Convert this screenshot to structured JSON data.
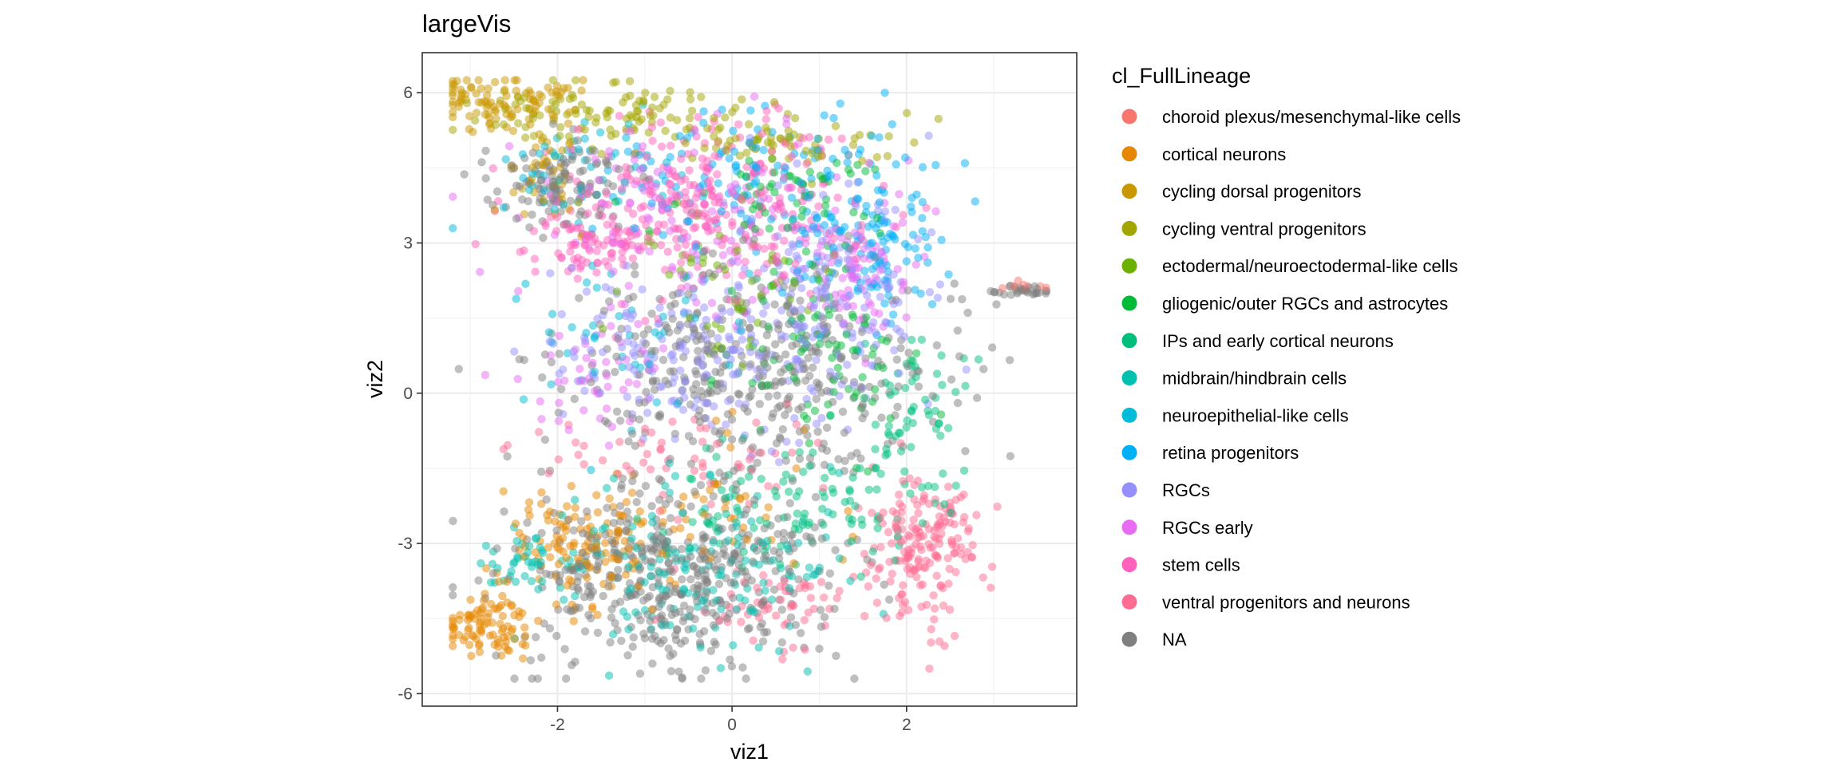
{
  "chart_data": {
    "type": "scatter",
    "title": "largeVis",
    "xlabel": "viz1",
    "ylabel": "viz2",
    "xlim": [
      -3.55,
      3.95
    ],
    "ylim": [
      -6.25,
      6.8
    ],
    "xticks": [
      -2,
      0,
      2
    ],
    "yticks": [
      -6,
      -3,
      0,
      3,
      6
    ],
    "grid": true,
    "point_alpha": 0.5,
    "legend": {
      "title": "cl_FullLineage",
      "placement": "right"
    },
    "series": [
      {
        "name": "choroid plexus/mesenchymal-like cells",
        "color": "#F8766D",
        "n": 8,
        "clusters": [
          {
            "cx": 3.35,
            "cy": 2.15,
            "sx": 0.12,
            "sy": 0.06,
            "w": 1
          }
        ]
      },
      {
        "name": "cortical neurons",
        "color": "#E58700",
        "n": 260,
        "clusters": [
          {
            "cx": -2.8,
            "cy": -4.6,
            "sx": 0.25,
            "sy": 0.35,
            "w": 0.35
          },
          {
            "cx": -1.7,
            "cy": -3.0,
            "sx": 0.45,
            "sy": 0.6,
            "w": 0.45
          },
          {
            "cx": -0.2,
            "cy": -2.2,
            "sx": 0.6,
            "sy": 0.7,
            "w": 0.2
          }
        ]
      },
      {
        "name": "cycling dorsal progenitors",
        "color": "#C99800",
        "n": 140,
        "clusters": [
          {
            "cx": -2.6,
            "cy": 5.8,
            "sx": 0.45,
            "sy": 0.25,
            "w": 0.7
          },
          {
            "cx": -2.2,
            "cy": 4.4,
            "sx": 0.3,
            "sy": 0.6,
            "w": 0.3
          }
        ]
      },
      {
        "name": "cycling ventral progenitors",
        "color": "#A3A500",
        "n": 170,
        "clusters": [
          {
            "cx": -1.5,
            "cy": 5.6,
            "sx": 0.7,
            "sy": 0.3,
            "w": 0.6
          },
          {
            "cx": 0.5,
            "cy": 5.0,
            "sx": 0.6,
            "sy": 0.3,
            "w": 0.4
          }
        ]
      },
      {
        "name": "ectodermal/neuroectodermal-like cells",
        "color": "#6BB100",
        "n": 60,
        "clusters": [
          {
            "cx": 0.0,
            "cy": 2.2,
            "sx": 0.6,
            "sy": 0.8,
            "w": 1
          }
        ]
      },
      {
        "name": "gliogenic/outer RGCs and astrocytes",
        "color": "#00BA38",
        "n": 150,
        "clusters": [
          {
            "cx": 1.0,
            "cy": 0.8,
            "sx": 0.6,
            "sy": 0.9,
            "w": 0.6
          },
          {
            "cx": 0.6,
            "cy": 4.0,
            "sx": 0.7,
            "sy": 0.6,
            "w": 0.4
          }
        ]
      },
      {
        "name": "IPs and early cortical neurons",
        "color": "#00BF7D",
        "n": 170,
        "clusters": [
          {
            "cx": 2.1,
            "cy": -0.6,
            "sx": 0.35,
            "sy": 1.0,
            "w": 0.4
          },
          {
            "cx": 0.6,
            "cy": -2.2,
            "sx": 0.8,
            "sy": 0.6,
            "w": 0.6
          }
        ]
      },
      {
        "name": "midbrain/hindbrain cells",
        "color": "#00C0AF",
        "n": 200,
        "clusters": [
          {
            "cx": -2.2,
            "cy": -3.4,
            "sx": 0.3,
            "sy": 0.3,
            "w": 0.2
          },
          {
            "cx": -0.4,
            "cy": -3.5,
            "sx": 0.9,
            "sy": 0.8,
            "w": 0.8
          }
        ]
      },
      {
        "name": "neuroepithelial-like cells",
        "color": "#00BCD8",
        "n": 100,
        "clusters": [
          {
            "cx": -1.9,
            "cy": 4.4,
            "sx": 0.5,
            "sy": 0.6,
            "w": 0.5
          },
          {
            "cx": -1.0,
            "cy": 1.2,
            "sx": 0.7,
            "sy": 0.9,
            "w": 0.5
          }
        ]
      },
      {
        "name": "retina progenitors",
        "color": "#00B0F6",
        "n": 230,
        "clusters": [
          {
            "cx": 0.3,
            "cy": 4.3,
            "sx": 1.0,
            "sy": 0.7,
            "w": 0.6
          },
          {
            "cx": 1.6,
            "cy": 2.8,
            "sx": 0.4,
            "sy": 0.7,
            "w": 0.4
          }
        ]
      },
      {
        "name": "RGCs",
        "color": "#9590FF",
        "n": 340,
        "clusters": [
          {
            "cx": 1.0,
            "cy": 1.8,
            "sx": 0.7,
            "sy": 1.2,
            "w": 0.6
          },
          {
            "cx": -0.7,
            "cy": 0.8,
            "sx": 0.8,
            "sy": 0.8,
            "w": 0.4
          }
        ]
      },
      {
        "name": "RGCs early",
        "color": "#E76BF3",
        "n": 240,
        "clusters": [
          {
            "cx": -0.6,
            "cy": 3.5,
            "sx": 0.9,
            "sy": 0.9,
            "w": 0.5
          },
          {
            "cx": -1.6,
            "cy": 0.2,
            "sx": 0.5,
            "sy": 0.5,
            "w": 0.2
          },
          {
            "cx": 1.5,
            "cy": 2.3,
            "sx": 0.4,
            "sy": 0.7,
            "w": 0.3
          }
        ]
      },
      {
        "name": "stem cells",
        "color": "#FF62BC",
        "n": 380,
        "clusters": [
          {
            "cx": -0.3,
            "cy": 3.7,
            "sx": 0.85,
            "sy": 0.85,
            "w": 0.85
          },
          {
            "cx": -1.6,
            "cy": 2.9,
            "sx": 0.25,
            "sy": 0.3,
            "w": 0.15
          }
        ]
      },
      {
        "name": "ventral progenitors and neurons",
        "color": "#FF6C91",
        "n": 300,
        "clusters": [
          {
            "cx": 2.2,
            "cy": -3.1,
            "sx": 0.3,
            "sy": 0.7,
            "w": 0.6
          },
          {
            "cx": 0.5,
            "cy": -4.2,
            "sx": 0.5,
            "sy": 0.4,
            "w": 0.2
          },
          {
            "cx": -0.6,
            "cy": -1.3,
            "sx": 0.8,
            "sy": 0.5,
            "w": 0.2
          }
        ]
      },
      {
        "name": "NA",
        "color": "#7F7F7F",
        "n": 1000,
        "clusters": [
          {
            "cx": 0.3,
            "cy": 0.4,
            "sx": 1.1,
            "sy": 1.1,
            "w": 0.4
          },
          {
            "cx": -0.7,
            "cy": -3.7,
            "sx": 0.9,
            "sy": 0.9,
            "w": 0.45
          },
          {
            "cx": -2.0,
            "cy": 4.2,
            "sx": 0.4,
            "sy": 0.5,
            "w": 0.12
          },
          {
            "cx": 3.3,
            "cy": 2.05,
            "sx": 0.22,
            "sy": 0.05,
            "w": 0.03
          }
        ]
      }
    ]
  }
}
